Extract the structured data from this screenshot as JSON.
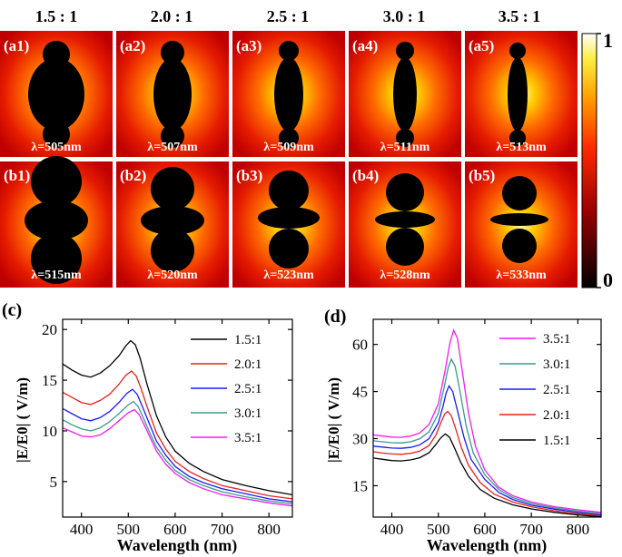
{
  "figure": {
    "ratio_headers": [
      "1.5 : 1",
      "2.0 : 1",
      "2.5 : 1",
      "3.0 : 1",
      "3.5 : 1"
    ],
    "row_a": [
      {
        "panel": "(a1)",
        "lambda": "λ=505nm"
      },
      {
        "panel": "(a2)",
        "lambda": "λ=507nm"
      },
      {
        "panel": "(a3)",
        "lambda": "λ=509nm"
      },
      {
        "panel": "(a4)",
        "lambda": "λ=511nm"
      },
      {
        "panel": "(a5)",
        "lambda": "λ=513nm"
      }
    ],
    "row_b": [
      {
        "panel": "(b1)",
        "lambda": "λ=515nm"
      },
      {
        "panel": "(b2)",
        "lambda": "λ=520nm"
      },
      {
        "panel": "(b3)",
        "lambda": "λ=523nm"
      },
      {
        "panel": "(b4)",
        "lambda": "λ=528nm"
      },
      {
        "panel": "(b5)",
        "lambda": "λ=533nm"
      }
    ],
    "colorbar": {
      "max_label": "1",
      "min_label": "0"
    }
  },
  "chart_data": [
    {
      "type": "line",
      "panel_label": "(c)",
      "xlabel": "Wavelength (nm)",
      "ylabel": "|E/E0| ( V/m)",
      "xlim": [
        360,
        850
      ],
      "ylim": [
        1.5,
        21
      ],
      "xticks": [
        400,
        500,
        600,
        700,
        800
      ],
      "yticks": [
        5,
        10,
        15,
        20
      ],
      "legend_position": "top-right",
      "series": [
        {
          "name": "1.5:1",
          "color": "#000000",
          "peak": [
            505,
            18.9
          ],
          "points": [
            [
              360,
              16.6
            ],
            [
              380,
              16.0
            ],
            [
              400,
              15.5
            ],
            [
              420,
              15.3
            ],
            [
              440,
              15.7
            ],
            [
              460,
              16.4
            ],
            [
              480,
              17.4
            ],
            [
              495,
              18.4
            ],
            [
              505,
              18.9
            ],
            [
              515,
              18.5
            ],
            [
              525,
              17.2
            ],
            [
              540,
              14.6
            ],
            [
              560,
              11.5
            ],
            [
              580,
              9.4
            ],
            [
              600,
              8.0
            ],
            [
              630,
              6.8
            ],
            [
              660,
              6.0
            ],
            [
              700,
              5.2
            ],
            [
              750,
              4.6
            ],
            [
              800,
              4.1
            ],
            [
              850,
              3.7
            ]
          ]
        },
        {
          "name": "2.0:1",
          "color": "#e8221b",
          "peak": [
            507,
            15.9
          ],
          "points": [
            [
              360,
              13.8
            ],
            [
              380,
              13.3
            ],
            [
              400,
              12.8
            ],
            [
              420,
              12.6
            ],
            [
              440,
              13.0
            ],
            [
              460,
              13.6
            ],
            [
              480,
              14.6
            ],
            [
              495,
              15.5
            ],
            [
              507,
              15.9
            ],
            [
              517,
              15.4
            ],
            [
              527,
              14.2
            ],
            [
              540,
              12.4
            ],
            [
              560,
              9.8
            ],
            [
              580,
              8.2
            ],
            [
              600,
              7.0
            ],
            [
              630,
              6.0
            ],
            [
              660,
              5.3
            ],
            [
              700,
              4.6
            ],
            [
              750,
              4.1
            ],
            [
              800,
              3.6
            ],
            [
              850,
              3.3
            ]
          ]
        },
        {
          "name": "2.5:1",
          "color": "#1a1aff",
          "peak": [
            509,
            14.1
          ],
          "points": [
            [
              360,
              12.2
            ],
            [
              380,
              11.7
            ],
            [
              400,
              11.2
            ],
            [
              420,
              11.0
            ],
            [
              440,
              11.3
            ],
            [
              460,
              11.9
            ],
            [
              480,
              12.8
            ],
            [
              497,
              13.7
            ],
            [
              509,
              14.1
            ],
            [
              519,
              13.6
            ],
            [
              530,
              12.4
            ],
            [
              545,
              10.7
            ],
            [
              560,
              9.0
            ],
            [
              580,
              7.6
            ],
            [
              600,
              6.5
            ],
            [
              630,
              5.5
            ],
            [
              660,
              4.9
            ],
            [
              700,
              4.3
            ],
            [
              750,
              3.8
            ],
            [
              800,
              3.3
            ],
            [
              850,
              3.0
            ]
          ]
        },
        {
          "name": "3.0:1",
          "color": "#3a9a8a",
          "peak": [
            511,
            12.9
          ],
          "points": [
            [
              360,
              11.1
            ],
            [
              380,
              10.6
            ],
            [
              400,
              10.2
            ],
            [
              420,
              10.0
            ],
            [
              440,
              10.3
            ],
            [
              460,
              10.9
            ],
            [
              480,
              11.7
            ],
            [
              498,
              12.5
            ],
            [
              511,
              12.9
            ],
            [
              521,
              12.4
            ],
            [
              532,
              11.3
            ],
            [
              545,
              9.9
            ],
            [
              560,
              8.4
            ],
            [
              580,
              7.1
            ],
            [
              600,
              6.1
            ],
            [
              630,
              5.2
            ],
            [
              660,
              4.6
            ],
            [
              700,
              4.0
            ],
            [
              750,
              3.5
            ],
            [
              800,
              3.1
            ],
            [
              850,
              2.8
            ]
          ]
        },
        {
          "name": "3.5:1",
          "color": "#f01cf0",
          "peak": [
            513,
            12.1
          ],
          "points": [
            [
              360,
              10.3
            ],
            [
              380,
              9.9
            ],
            [
              400,
              9.5
            ],
            [
              420,
              9.4
            ],
            [
              440,
              9.6
            ],
            [
              460,
              10.2
            ],
            [
              480,
              11.0
            ],
            [
              500,
              11.8
            ],
            [
              513,
              12.1
            ],
            [
              523,
              11.6
            ],
            [
              534,
              10.6
            ],
            [
              548,
              9.2
            ],
            [
              560,
              8.0
            ],
            [
              580,
              6.7
            ],
            [
              600,
              5.8
            ],
            [
              630,
              4.9
            ],
            [
              660,
              4.3
            ],
            [
              700,
              3.7
            ],
            [
              750,
              3.3
            ],
            [
              800,
              2.9
            ],
            [
              850,
              2.6
            ]
          ]
        }
      ]
    },
    {
      "type": "line",
      "panel_label": "(d)",
      "xlabel": "Wavelength (nm)",
      "ylabel": "|E/E0| ( V/m)",
      "xlim": [
        360,
        850
      ],
      "ylim": [
        5,
        68
      ],
      "xticks": [
        400,
        500,
        600,
        700,
        800
      ],
      "yticks": [
        15,
        30,
        45,
        60
      ],
      "legend_position": "top-right",
      "series": [
        {
          "name": "3.5:1",
          "color": "#f01cf0",
          "peak": [
            533,
            64.5
          ],
          "points": [
            [
              360,
              31.2
            ],
            [
              380,
              30.8
            ],
            [
              400,
              30.5
            ],
            [
              420,
              30.4
            ],
            [
              440,
              30.8
            ],
            [
              460,
              31.8
            ],
            [
              480,
              34.5
            ],
            [
              500,
              41.0
            ],
            [
              515,
              52.0
            ],
            [
              525,
              60.5
            ],
            [
              533,
              64.5
            ],
            [
              541,
              62.0
            ],
            [
              550,
              53.0
            ],
            [
              565,
              38.0
            ],
            [
              580,
              27.5
            ],
            [
              600,
              20.0
            ],
            [
              630,
              14.5
            ],
            [
              660,
              11.8
            ],
            [
              700,
              9.8
            ],
            [
              750,
              8.3
            ],
            [
              800,
              7.3
            ],
            [
              850,
              6.5
            ]
          ]
        },
        {
          "name": "3.0:1",
          "color": "#3a9a8a",
          "peak": [
            528,
            55.3
          ],
          "points": [
            [
              360,
              29.3
            ],
            [
              380,
              29.0
            ],
            [
              400,
              28.7
            ],
            [
              420,
              28.6
            ],
            [
              440,
              29.0
            ],
            [
              460,
              29.9
            ],
            [
              480,
              32.2
            ],
            [
              500,
              38.0
            ],
            [
              512,
              46.0
            ],
            [
              521,
              52.5
            ],
            [
              528,
              55.3
            ],
            [
              536,
              53.0
            ],
            [
              546,
              45.5
            ],
            [
              560,
              34.0
            ],
            [
              575,
              25.5
            ],
            [
              600,
              18.5
            ],
            [
              630,
              13.8
            ],
            [
              660,
              11.2
            ],
            [
              700,
              9.3
            ],
            [
              750,
              7.9
            ],
            [
              800,
              6.9
            ],
            [
              850,
              6.1
            ]
          ]
        },
        {
          "name": "2.5:1",
          "color": "#1a1aff",
          "peak": [
            523,
            46.8
          ],
          "points": [
            [
              360,
              27.6
            ],
            [
              380,
              27.3
            ],
            [
              400,
              27.0
            ],
            [
              420,
              26.9
            ],
            [
              440,
              27.2
            ],
            [
              460,
              28.0
            ],
            [
              480,
              30.0
            ],
            [
              500,
              35.0
            ],
            [
              510,
              40.2
            ],
            [
              517,
              44.6
            ],
            [
              523,
              46.8
            ],
            [
              531,
              45.0
            ],
            [
              541,
              39.0
            ],
            [
              555,
              30.5
            ],
            [
              570,
              23.5
            ],
            [
              600,
              17.0
            ],
            [
              630,
              12.9
            ],
            [
              660,
              10.6
            ],
            [
              700,
              8.8
            ],
            [
              750,
              7.5
            ],
            [
              800,
              6.5
            ],
            [
              850,
              5.7
            ]
          ]
        },
        {
          "name": "2.0:1",
          "color": "#e8221b",
          "peak": [
            520,
            38.7
          ],
          "points": [
            [
              360,
              25.8
            ],
            [
              380,
              25.4
            ],
            [
              400,
              25.1
            ],
            [
              420,
              25.0
            ],
            [
              440,
              25.3
            ],
            [
              460,
              26.0
            ],
            [
              480,
              27.8
            ],
            [
              495,
              31.2
            ],
            [
              507,
              35.6
            ],
            [
              514,
              37.9
            ],
            [
              520,
              38.7
            ],
            [
              528,
              37.3
            ],
            [
              538,
              32.8
            ],
            [
              550,
              27.0
            ],
            [
              565,
              21.5
            ],
            [
              590,
              16.0
            ],
            [
              620,
              12.3
            ],
            [
              660,
              9.8
            ],
            [
              700,
              8.3
            ],
            [
              750,
              7.0
            ],
            [
              800,
              6.1
            ],
            [
              850,
              5.4
            ]
          ]
        },
        {
          "name": "1.5:1",
          "color": "#000000",
          "peak": [
            515,
            31.5
          ],
          "points": [
            [
              360,
              23.8
            ],
            [
              380,
              23.4
            ],
            [
              400,
              23.0
            ],
            [
              420,
              22.9
            ],
            [
              440,
              23.2
            ],
            [
              460,
              23.9
            ],
            [
              480,
              25.5
            ],
            [
              495,
              28.2
            ],
            [
              505,
              30.2
            ],
            [
              515,
              31.5
            ],
            [
              524,
              30.5
            ],
            [
              535,
              27.0
            ],
            [
              548,
              22.5
            ],
            [
              565,
              18.0
            ],
            [
              590,
              13.8
            ],
            [
              620,
              11.0
            ],
            [
              660,
              8.9
            ],
            [
              700,
              7.6
            ],
            [
              750,
              6.5
            ],
            [
              800,
              5.7
            ],
            [
              850,
              5.1
            ]
          ]
        }
      ]
    }
  ]
}
